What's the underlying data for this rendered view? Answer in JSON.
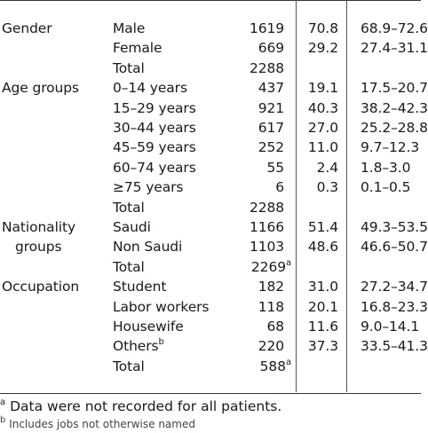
{
  "rows": [
    {
      "group": "Gender",
      "category": "Male",
      "n": "1619",
      "pct": "70.8",
      "ci": "68.9–72.6"
    },
    {
      "group": "",
      "category": "Female",
      "n": "669",
      "pct": "29.2",
      "ci": "27.4–31.1"
    },
    {
      "group": "",
      "category": "Total",
      "n": "2288",
      "pct": "",
      "ci": ""
    },
    {
      "group": "Age groups",
      "category": "0–14 years",
      "n": "437",
      "pct": "19.1",
      "ci": "17.5–20.7"
    },
    {
      "group": "",
      "category": "15–29 years",
      "n": "921",
      "pct": "40.3",
      "ci": "38.2–42.3"
    },
    {
      "group": "",
      "category": "30–44 years",
      "n": "617",
      "pct": "27.0",
      "ci": "25.2–28.8"
    },
    {
      "group": "",
      "category": "45–59 years",
      "n": "252",
      "pct": "11.0",
      "ci": "9.7–12.3"
    },
    {
      "group": "",
      "category": "60–74 years",
      "n": "55",
      "pct": "2.4",
      "ci": "1.8–3.0"
    },
    {
      "group": "",
      "category": "≥75 years",
      "n": "6",
      "pct": "0.3",
      "ci": "0.1–0.5"
    },
    {
      "group": "",
      "category": "Total",
      "n": "2288",
      "pct": "",
      "ci": ""
    },
    {
      "group": "Nationality",
      "category": "Saudi",
      "n": "1166",
      "pct": "51.4",
      "ci": "49.3–53.5"
    },
    {
      "group": "groups",
      "category": "Non Saudi",
      "n": "1103",
      "pct": "48.6",
      "ci": "46.6–50.7"
    },
    {
      "group": "",
      "category": "Total",
      "n": "2269",
      "n_sup": "a",
      "pct": "",
      "ci": ""
    },
    {
      "group": "Occupation",
      "category": "Student",
      "n": "182",
      "pct": "31.0",
      "ci": "27.2–34.7"
    },
    {
      "group": "",
      "category": "Labor workers",
      "n": "118",
      "pct": "20.1",
      "ci": "16.8–23.3"
    },
    {
      "group": "",
      "category": "Housewife",
      "n": "68",
      "pct": "11.6",
      "ci": "9.0–14.1"
    },
    {
      "group": "",
      "category": "Others",
      "category_sup": "b",
      "n": "220",
      "pct": "37.3",
      "ci": "33.5–41.3"
    },
    {
      "group": "",
      "category": "Total",
      "n": "588",
      "n_sup": "a",
      "pct": "",
      "ci": ""
    }
  ],
  "footnotes": {
    "a_mark": "a",
    "a_text": "Data were not recorded for all patients.",
    "b_mark": "b",
    "b_text": "Includes jobs not otherwise named"
  }
}
